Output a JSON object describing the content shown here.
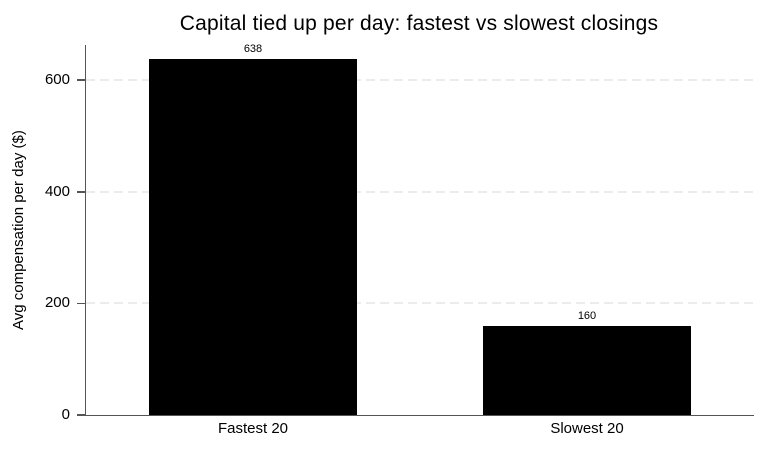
{
  "chart_data": {
    "type": "bar",
    "title": "Capital tied up per day: fastest vs slowest closings",
    "xlabel": "",
    "ylabel": "Avg compensation per day ($)",
    "categories": [
      "Fastest 20",
      "Slowest 20"
    ],
    "values": [
      638,
      160
    ],
    "value_labels": [
      "638",
      "160"
    ],
    "yticks": [
      0,
      200,
      400,
      600
    ],
    "ylim": [
      0,
      663
    ],
    "grid": "horizontal-dashed-light",
    "legend": "none",
    "colors": {
      "bar": "#000000",
      "axis": "#555555",
      "gridline": "#ececec",
      "text": "#000000",
      "background": "#ffffff"
    }
  }
}
